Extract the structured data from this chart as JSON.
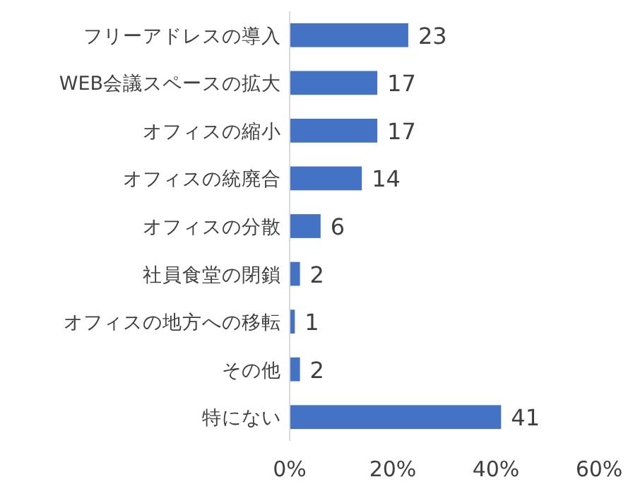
{
  "chart_data": {
    "type": "bar",
    "orientation": "horizontal",
    "categories": [
      "フリーアドレスの導入",
      "WEB会議スペースの拡大",
      "オフィスの縮小",
      "オフィスの統廃合",
      "オフィスの分散",
      "社員食堂の閉鎖",
      "オフィスの地方への移転",
      "その他",
      "特にない"
    ],
    "values": [
      23,
      17,
      17,
      14,
      6,
      2,
      1,
      2,
      41
    ],
    "color": "#4472c4",
    "xlim": [
      0,
      60
    ],
    "xticks": [
      {
        "value": 0,
        "label": "0%"
      },
      {
        "value": 20,
        "label": "20%"
      },
      {
        "value": 40,
        "label": "40%"
      },
      {
        "value": 60,
        "label": "60%"
      }
    ],
    "data_labels": true
  }
}
